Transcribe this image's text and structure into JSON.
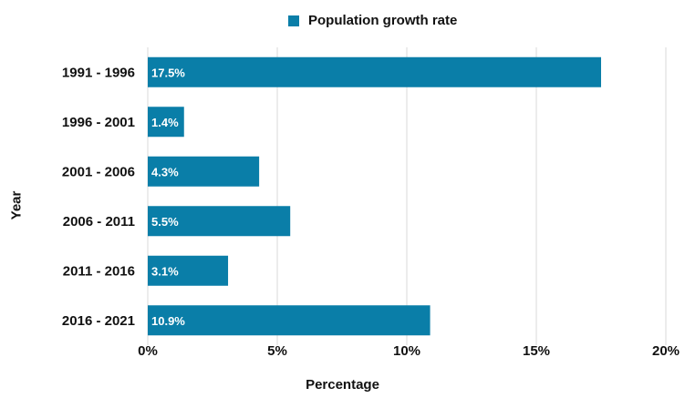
{
  "chart_data": {
    "type": "bar",
    "orientation": "horizontal",
    "categories": [
      "1991 - 1996",
      "1996 - 2001",
      "2001 - 2006",
      "2006 - 2011",
      "2011 - 2016",
      "2016 - 2021"
    ],
    "series": [
      {
        "name": "Population growth rate",
        "values": [
          17.5,
          1.4,
          4.3,
          5.5,
          3.1,
          10.9
        ]
      }
    ],
    "data_labels": [
      "17.5%",
      "1.4%",
      "4.3%",
      "5.5%",
      "3.1%",
      "10.9%"
    ],
    "xlabel": "Percentage",
    "ylabel": "Year",
    "xlim": [
      0,
      20
    ],
    "xticks": [
      0,
      5,
      10,
      15,
      20
    ],
    "xtick_labels": [
      "0%",
      "5%",
      "10%",
      "15%",
      "20%"
    ],
    "grid": "vertical",
    "legend_position": "top-center",
    "colors": {
      "bar": "#0a7ea8",
      "grid": "#d9d9d9",
      "text": "#111111"
    }
  }
}
